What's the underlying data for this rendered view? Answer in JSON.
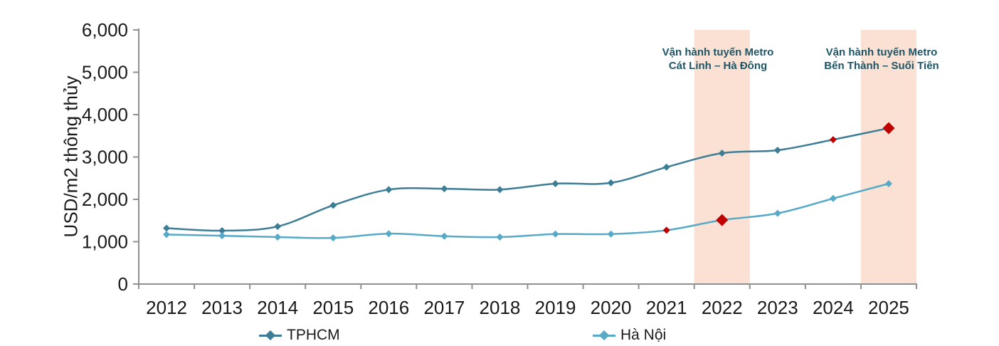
{
  "chart_data": {
    "type": "line",
    "title": "",
    "ylabel": "USD/m2 thông thủy",
    "xlabel": "",
    "ylim": [
      0,
      6000
    ],
    "ytick_step": 1000,
    "ytick_labels": [
      "0",
      "1,000",
      "2,000",
      "3,000",
      "4,000",
      "5,000",
      "6,000"
    ],
    "grid": false,
    "legend_position": "bottom",
    "categories": [
      "2012",
      "2013",
      "2014",
      "2015",
      "2016",
      "2017",
      "2018",
      "2019",
      "2020",
      "2021",
      "2022",
      "2023",
      "2024",
      "2025"
    ],
    "series": [
      {
        "name": "TPHCM",
        "color": "#3E7D96",
        "values": [
          1320,
          1260,
          1360,
          1860,
          2230,
          2250,
          2230,
          2370,
          2390,
          2760,
          3090,
          3160,
          3410,
          3680
        ],
        "red_points": [
          {
            "index": 12,
            "size": "small"
          },
          {
            "index": 13,
            "size": "large"
          }
        ]
      },
      {
        "name": "Hà Nội",
        "color": "#56A9C7",
        "values": [
          1170,
          1140,
          1110,
          1090,
          1190,
          1130,
          1110,
          1180,
          1180,
          1270,
          1510,
          1670,
          2020,
          2370
        ],
        "red_points": [
          {
            "index": 9,
            "size": "small"
          },
          {
            "index": 10,
            "size": "large"
          }
        ]
      }
    ],
    "highlight_bands": [
      {
        "category": "2022"
      },
      {
        "category": "2025"
      }
    ],
    "annotations": [
      {
        "lines": [
          "Vận hành tuyến Metro",
          "Cát Linh – Hà Đông"
        ],
        "band_category": "2022"
      },
      {
        "lines": [
          "Vận hành tuyến Metro",
          "Bến Thành – Suối Tiên"
        ],
        "band_category": "2025"
      }
    ],
    "colors": {
      "highlight_band": "#FAE1D3",
      "red_marker": "#C00000",
      "annotation_text": "#1E5566",
      "axis": "#909090",
      "tick_label": "#1a1a1a"
    }
  }
}
